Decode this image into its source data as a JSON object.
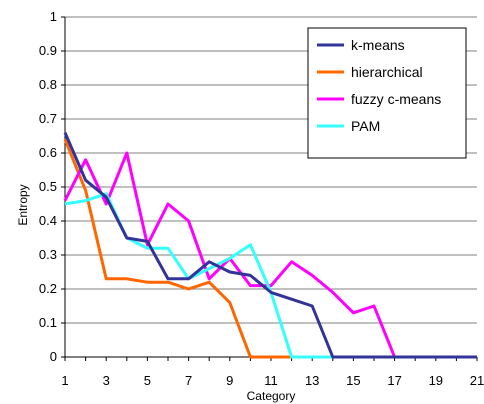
{
  "chart_data": {
    "type": "line",
    "xlabel": "Category",
    "ylabel": "Entropy",
    "xlim": [
      1,
      21
    ],
    "ylim": [
      0,
      1
    ],
    "x_ticks": [
      1,
      3,
      5,
      7,
      9,
      11,
      13,
      15,
      17,
      19,
      21
    ],
    "y_ticks": [
      "0",
      "0.1",
      "0.2",
      "0.3",
      "0.4",
      "0.5",
      "0.6",
      "0.7",
      "0.8",
      "0.9",
      "1"
    ],
    "grid": "horizontal",
    "legend_position": "top-right",
    "series": [
      {
        "name": "k-means",
        "color": "#333399",
        "x": [
          1,
          2,
          3,
          4,
          5,
          6,
          7,
          8,
          9,
          10,
          11,
          12,
          13,
          14,
          15,
          16,
          17,
          18,
          19,
          20,
          21
        ],
        "values": [
          0.66,
          0.52,
          0.47,
          0.35,
          0.34,
          0.23,
          0.23,
          0.28,
          0.25,
          0.24,
          0.19,
          0.17,
          0.15,
          0,
          0,
          0,
          0,
          0,
          0,
          0,
          0
        ]
      },
      {
        "name": "hierarchical",
        "color": "#FF6600",
        "x": [
          1,
          2,
          3,
          4,
          5,
          6,
          7,
          8,
          9,
          10,
          11,
          12,
          13,
          14,
          15,
          16,
          17,
          18,
          19,
          20,
          21
        ],
        "values": [
          0.64,
          0.49,
          0.23,
          0.23,
          0.22,
          0.22,
          0.2,
          0.22,
          0.16,
          0,
          0,
          0,
          0,
          0,
          0,
          0,
          0,
          0,
          0,
          0,
          0
        ]
      },
      {
        "name": "fuzzy c-means",
        "color": "#FF00FF",
        "x": [
          1,
          2,
          3,
          4,
          5,
          6,
          7,
          8,
          9,
          10,
          11,
          12,
          13,
          14,
          15,
          16,
          17,
          18,
          19,
          20,
          21
        ],
        "values": [
          0.46,
          0.58,
          0.45,
          0.6,
          0.33,
          0.45,
          0.4,
          0.23,
          0.29,
          0.21,
          0.21,
          0.28,
          0.24,
          0.19,
          0.13,
          0.15,
          0,
          0,
          0,
          0,
          0
        ]
      },
      {
        "name": "PAM",
        "color": "#33FFFF",
        "x": [
          1,
          2,
          3,
          4,
          5,
          6,
          7,
          8,
          9,
          10,
          11,
          12,
          13,
          14,
          15,
          16,
          17,
          18,
          19,
          20,
          21
        ],
        "values": [
          0.45,
          0.46,
          0.48,
          0.35,
          0.32,
          0.32,
          0.23,
          0.26,
          0.29,
          0.33,
          0.19,
          0,
          0,
          0,
          0,
          0,
          0,
          0,
          0,
          0,
          0
        ]
      }
    ]
  }
}
